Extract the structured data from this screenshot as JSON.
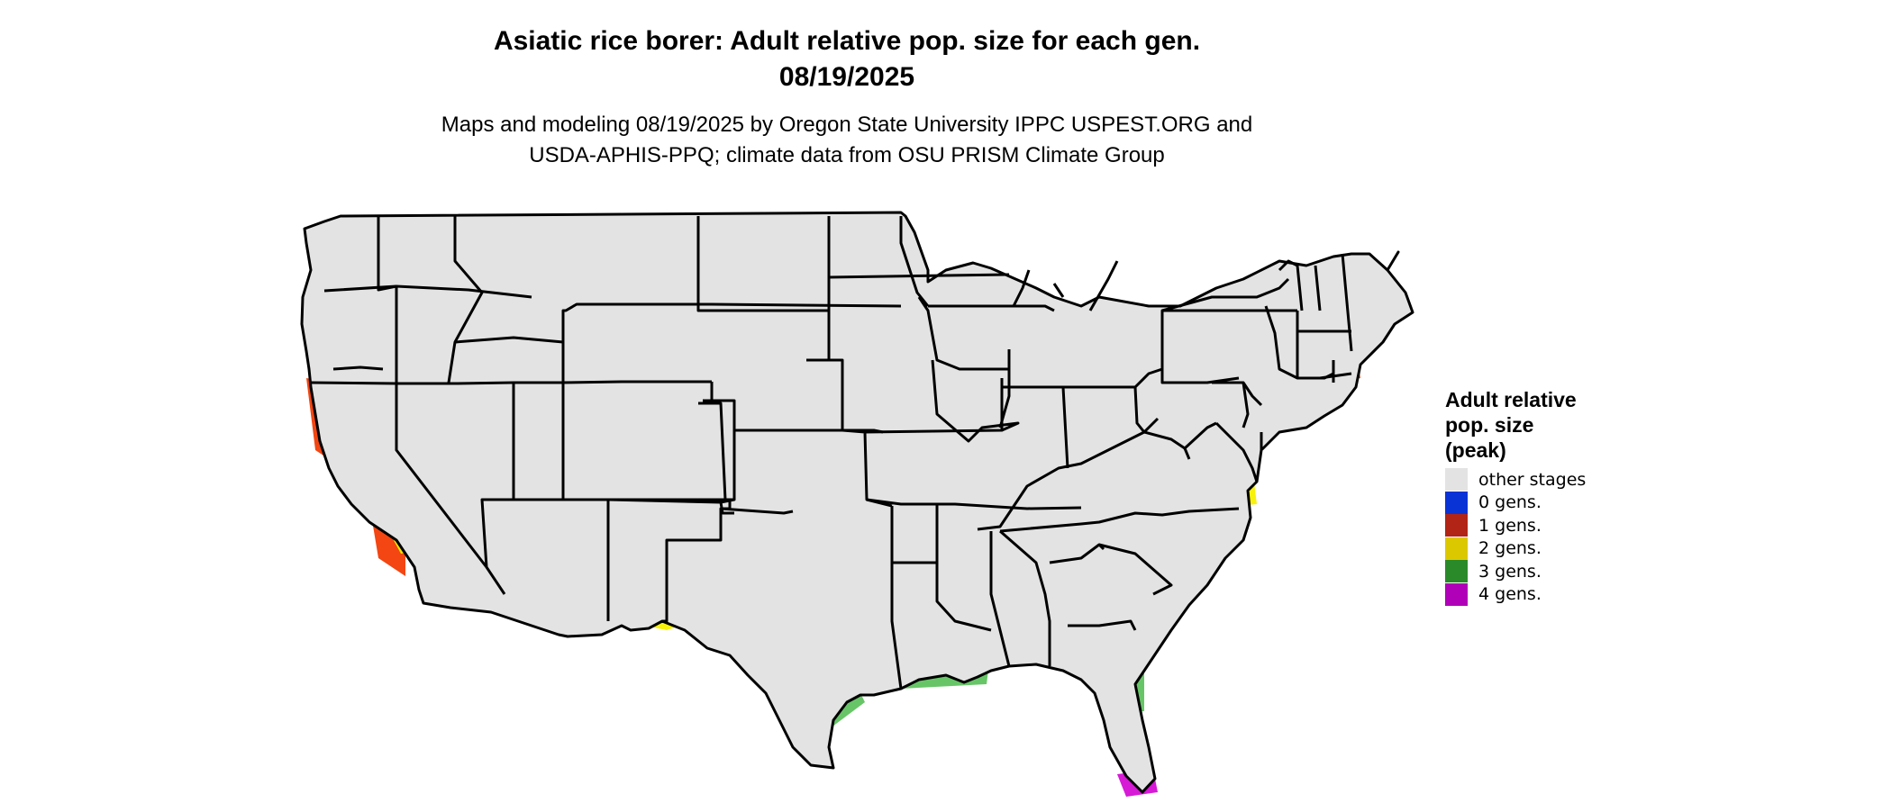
{
  "title_line1": "Asiatic rice borer: Adult relative pop. size for each gen.",
  "title_line2": "08/19/2025",
  "subtitle_line1": "Maps and modeling 08/19/2025 by Oregon State University IPPC USPEST.ORG and",
  "subtitle_line2": "USDA-APHIS-PPQ; climate data from OSU PRISM Climate Group",
  "legend": {
    "title_line1": "Adult relative",
    "title_line2": "pop. size",
    "title_line3": "(peak)",
    "items": [
      {
        "label": "other stages",
        "color": "#e3e3e3"
      },
      {
        "label": "0 gens.",
        "color": "#0a33d6"
      },
      {
        "label": "1 gens.",
        "color": "#b22415"
      },
      {
        "label": "2 gens.",
        "color": "#dcc800"
      },
      {
        "label": "3 gens.",
        "color": "#2a8a2a"
      },
      {
        "label": "4 gens.",
        "color": "#b000b8"
      }
    ]
  },
  "map_colors": {
    "land": "#e3e3e3",
    "zero_gens": "#1f8ff0",
    "one_gens": "#f23c05",
    "one_gens_dark": "#d63a10",
    "two_gens": "#f7f000",
    "three_gens": "#5fc25f",
    "four_gens": "#d40ed4",
    "border": "#000000"
  }
}
